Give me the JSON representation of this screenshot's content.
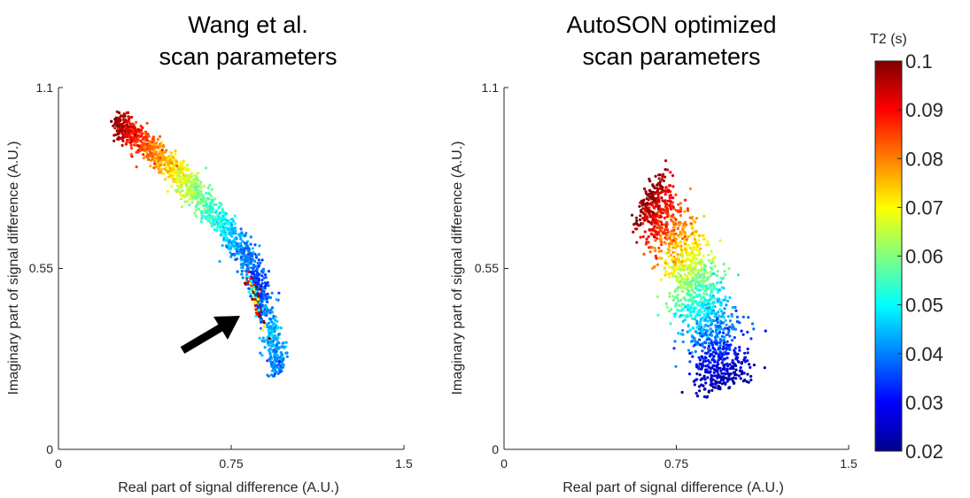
{
  "chart_data": [
    {
      "type": "scatter",
      "title_lines": [
        "Wang et al.",
        "scan parameters"
      ],
      "xlabel": "Real part of signal difference (A.U.)",
      "ylabel": "Imaginary part of signal difference (A.U.)",
      "xlim": [
        0,
        1.5
      ],
      "ylim": [
        0,
        1.1
      ],
      "xticks": [
        "0",
        "0.75",
        "1.5"
      ],
      "yticks": [
        "0",
        "0.55",
        "1.1"
      ],
      "color_variable": "T2 (s)",
      "annotation": "black arrow pointing at a cluster of mixed-T2 points near (0.85, 0.45)",
      "clusters": [
        {
          "t2": 0.1,
          "x": 0.25,
          "y": 0.99
        },
        {
          "t2": 0.09,
          "x": 0.32,
          "y": 0.96
        },
        {
          "t2": 0.08,
          "x": 0.42,
          "y": 0.9
        },
        {
          "t2": 0.07,
          "x": 0.52,
          "y": 0.84
        },
        {
          "t2": 0.06,
          "x": 0.61,
          "y": 0.77
        },
        {
          "t2": 0.05,
          "x": 0.71,
          "y": 0.69
        },
        {
          "t2": 0.04,
          "x": 0.8,
          "y": 0.6
        },
        {
          "t2": 0.035,
          "x": 0.87,
          "y": 0.51
        },
        {
          "t2": 0.045,
          "x": 0.92,
          "y": 0.36
        },
        {
          "t2": 0.04,
          "x": 0.96,
          "y": 0.24
        }
      ]
    },
    {
      "type": "scatter",
      "title_lines": [
        "AutoSON optimized",
        "scan parameters"
      ],
      "xlabel": "Real part of signal difference (A.U.)",
      "ylabel": "Imaginary part of signal difference (A.U.)",
      "xlim": [
        0,
        1.5
      ],
      "ylim": [
        0,
        1.1
      ],
      "xticks": [
        "0",
        "0.75",
        "1.5"
      ],
      "yticks": [
        "0",
        "0.55",
        "1.1"
      ],
      "color_variable": "T2 (s)",
      "clusters": [
        {
          "t2": 0.1,
          "x": 0.62,
          "y": 0.77
        },
        {
          "t2": 0.09,
          "x": 0.68,
          "y": 0.72
        },
        {
          "t2": 0.08,
          "x": 0.74,
          "y": 0.65
        },
        {
          "t2": 0.07,
          "x": 0.79,
          "y": 0.58
        },
        {
          "t2": 0.06,
          "x": 0.83,
          "y": 0.51
        },
        {
          "t2": 0.05,
          "x": 0.87,
          "y": 0.44
        },
        {
          "t2": 0.04,
          "x": 0.91,
          "y": 0.36
        },
        {
          "t2": 0.03,
          "x": 0.94,
          "y": 0.27
        },
        {
          "t2": 0.02,
          "x": 0.96,
          "y": 0.19
        }
      ]
    }
  ],
  "colorbar": {
    "label": "T2 (s)",
    "colormap": "jet",
    "range": [
      0.02,
      0.1
    ],
    "ticks": [
      "0.1",
      "0.09",
      "0.08",
      "0.07",
      "0.06",
      "0.05",
      "0.04",
      "0.03",
      "0.02"
    ]
  },
  "colors": {
    "jet": [
      "#00008f",
      "#0000ff",
      "#0080ff",
      "#00ffff",
      "#80ff80",
      "#ffff00",
      "#ff8000",
      "#ff0000",
      "#800000"
    ],
    "axis": "#262626",
    "arrow": "#000000"
  }
}
